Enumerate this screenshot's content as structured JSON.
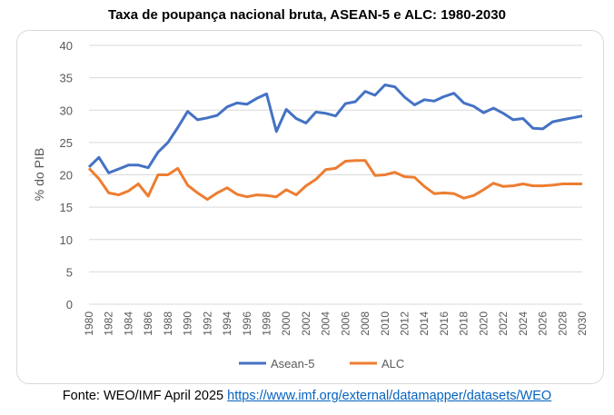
{
  "chart_data": {
    "type": "line",
    "title": "Taxa de poupança nacional bruta, ASEAN-5 e ALC: 1980-2030",
    "xlabel": "",
    "ylabel": "% do PIB",
    "ylim": [
      0,
      40
    ],
    "yticks": [
      0,
      5,
      10,
      15,
      20,
      25,
      30,
      35,
      40
    ],
    "grid": true,
    "legend": "bottom",
    "x": [
      1980,
      1981,
      1982,
      1983,
      1984,
      1985,
      1986,
      1987,
      1988,
      1989,
      1990,
      1991,
      1992,
      1993,
      1994,
      1995,
      1996,
      1997,
      1998,
      1999,
      2000,
      2001,
      2002,
      2003,
      2004,
      2005,
      2006,
      2007,
      2008,
      2009,
      2010,
      2011,
      2012,
      2013,
      2014,
      2015,
      2016,
      2017,
      2018,
      2019,
      2020,
      2021,
      2022,
      2023,
      2024,
      2025,
      2026,
      2027,
      2028,
      2029,
      2030
    ],
    "xticks": [
      "1980",
      "1982",
      "1984",
      "1986",
      "1988",
      "1990",
      "1992",
      "1994",
      "1996",
      "1998",
      "2000",
      "2002",
      "2004",
      "2006",
      "2008",
      "2010",
      "2012",
      "2014",
      "2016",
      "2018",
      "2020",
      "2022",
      "2024",
      "2026",
      "2028",
      "2030"
    ],
    "series": [
      {
        "name": "Asean-5",
        "color": "#4472c4",
        "values": [
          21.2,
          22.7,
          20.3,
          20.9,
          21.5,
          21.5,
          21.1,
          23.5,
          25.0,
          27.3,
          29.8,
          28.5,
          28.8,
          29.2,
          30.5,
          31.1,
          30.9,
          31.8,
          32.5,
          26.7,
          30.1,
          28.7,
          28.0,
          29.7,
          29.5,
          29.1,
          31.0,
          31.3,
          32.9,
          32.3,
          33.9,
          33.6,
          32.0,
          30.8,
          31.6,
          31.4,
          32.1,
          32.6,
          31.1,
          30.6,
          29.6,
          30.3,
          29.5,
          28.5,
          28.7,
          27.2,
          27.1,
          28.2,
          28.5,
          28.8,
          29.1
        ]
      },
      {
        "name": "ALC",
        "color": "#ed7d31",
        "values": [
          21.0,
          19.4,
          17.2,
          16.9,
          17.5,
          18.6,
          16.7,
          20.0,
          20.0,
          21.0,
          18.4,
          17.2,
          16.2,
          17.2,
          18.0,
          17.0,
          16.6,
          16.9,
          16.8,
          16.6,
          17.7,
          16.9,
          18.3,
          19.3,
          20.8,
          21.0,
          22.1,
          22.2,
          22.2,
          19.9,
          20.0,
          20.4,
          19.7,
          19.6,
          18.2,
          17.1,
          17.2,
          17.1,
          16.4,
          16.8,
          17.7,
          18.7,
          18.2,
          18.3,
          18.6,
          18.3,
          18.3,
          18.4,
          18.6,
          18.6,
          18.6
        ]
      }
    ]
  },
  "footer": {
    "source": "Fonte: WEO/IMF April 2025 ",
    "link": "https://www.imf.org/external/datamapper/datasets/WEO"
  }
}
